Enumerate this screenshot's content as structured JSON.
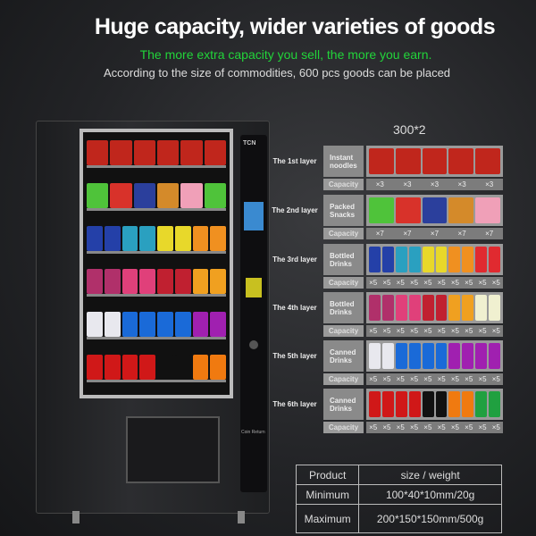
{
  "header": {
    "title": "Huge capacity, wider varieties of goods",
    "subtitle": "The more extra capacity you sell, the more you earn.",
    "note": "According to the size of commodities, 600 pcs goods can be placed"
  },
  "machine": {
    "brand": "TCN",
    "coin_return": "Coin Return"
  },
  "capacity_total": "300*2",
  "capacity_label": "Capacity",
  "layers": [
    {
      "label": "The 1st layer",
      "category": "Instant noodles",
      "capacities": [
        "×3",
        "×3",
        "×3",
        "×3",
        "×3"
      ],
      "colors": [
        "#c0261c",
        "#c0261c",
        "#c0261c",
        "#c0261c",
        "#c0261c"
      ]
    },
    {
      "label": "The 2nd layer",
      "category": "Packed Snacks",
      "capacities": [
        "×7",
        "×7",
        "×7",
        "×7",
        "×7"
      ],
      "colors": [
        "#4fc33a",
        "#d8322a",
        "#2b3f9c",
        "#d48a2a",
        "#f0a0b8"
      ]
    },
    {
      "label": "The 3rd layer",
      "category": "Bottled Drinks",
      "capacities": [
        "×5",
        "×5",
        "×5",
        "×5",
        "×5",
        "×5",
        "×5",
        "×5",
        "×5",
        "×5"
      ],
      "colors": [
        "#2440a8",
        "#2440a8",
        "#2aa0c0",
        "#2aa0c0",
        "#e8d82a",
        "#e8d82a",
        "#f09020",
        "#f09020",
        "#e02a30",
        "#e02a30"
      ]
    },
    {
      "label": "The 4th layer",
      "category": "Bottled Drinks",
      "capacities": [
        "×5",
        "×5",
        "×5",
        "×5",
        "×5",
        "×5",
        "×5",
        "×5",
        "×5",
        "×5"
      ],
      "colors": [
        "#b0306a",
        "#b0306a",
        "#e0407a",
        "#e0407a",
        "#c02030",
        "#c02030",
        "#f0a020",
        "#f0a020",
        "#f0f0d0",
        "#f0f0d0"
      ]
    },
    {
      "label": "The 5th layer",
      "category": "Canned Drinks",
      "capacities": [
        "×5",
        "×5",
        "×5",
        "×5",
        "×5",
        "×5",
        "×5",
        "×5",
        "×5",
        "×5"
      ],
      "colors": [
        "#e8e8ee",
        "#e8e8ee",
        "#1a6ad8",
        "#1a6ad8",
        "#1a6ad8",
        "#1a6ad8",
        "#a020b0",
        "#a020b0",
        "#a020b0",
        "#a020b0"
      ]
    },
    {
      "label": "The 6th layer",
      "category": "Canned Drinks",
      "capacities": [
        "×5",
        "×5",
        "×5",
        "×5",
        "×5",
        "×5",
        "×5",
        "×5",
        "×5",
        "×5"
      ],
      "colors": [
        "#d01818",
        "#d01818",
        "#d01818",
        "#d01818",
        "#111111",
        "#111111",
        "#f07a10",
        "#f07a10",
        "#20a040",
        "#20a040"
      ]
    }
  ],
  "size_table": {
    "headers": [
      "Product",
      "size / weight"
    ],
    "rows": [
      [
        "Minimum",
        "100*40*10mm/20g"
      ],
      [
        "Maximum",
        "200*150*150mm/500g"
      ]
    ]
  }
}
